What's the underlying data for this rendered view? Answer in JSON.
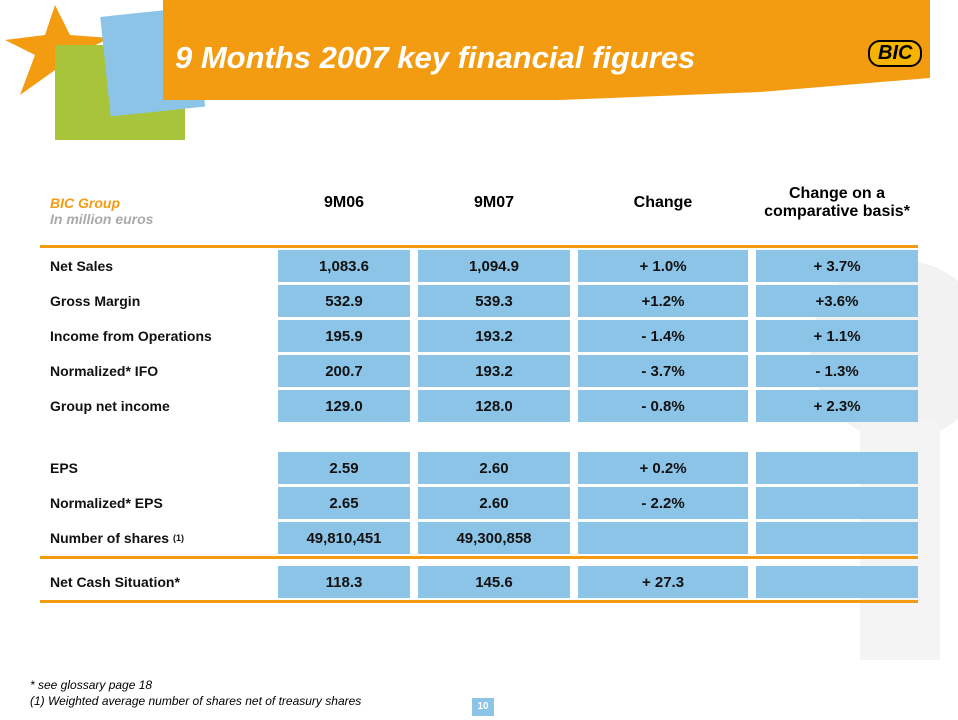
{
  "header": {
    "title": "9 Months 2007 key financial figures",
    "logo": "BIC"
  },
  "table": {
    "group": "BIC Group",
    "unit": "In million euros",
    "columns": [
      "9M06",
      "9M07",
      "Change",
      "Change on a comparative basis*"
    ],
    "rows": [
      {
        "label": "Net Sales",
        "cells": [
          "1,083.6",
          "1,094.9",
          "+ 1.0%",
          "+ 3.7%"
        ]
      },
      {
        "label": "Gross Margin",
        "cells": [
          "532.9",
          "539.3",
          "+1.2%",
          "+3.6%"
        ]
      },
      {
        "label": "Income from Operations",
        "cells": [
          "195.9",
          "193.2",
          "- 1.4%",
          "+ 1.1%"
        ]
      },
      {
        "label": "Normalized* IFO",
        "cells": [
          "200.7",
          "193.2",
          "- 3.7%",
          "- 1.3%"
        ]
      },
      {
        "label": "Group net income",
        "cells": [
          "129.0",
          "128.0",
          "- 0.8%",
          "+ 2.3%"
        ]
      },
      {
        "label": "EPS",
        "cells": [
          "2.59",
          "2.60",
          "+ 0.2%",
          null
        ]
      },
      {
        "label": "Normalized* EPS",
        "cells": [
          "2.65",
          "2.60",
          "- 2.2%",
          null
        ]
      },
      {
        "label": "Number of shares",
        "note": "(1)",
        "cells": [
          "49,810,451",
          "49,300,858",
          null,
          null
        ]
      },
      {
        "label": "Net Cash Situation*",
        "cells": [
          "118.3",
          "145.6",
          "+ 27.3",
          null
        ]
      }
    ]
  },
  "footnotes": [
    "* see glossary page 18",
    "(1) Weighted average number of shares net of treasury shares"
  ],
  "page_number": "10"
}
